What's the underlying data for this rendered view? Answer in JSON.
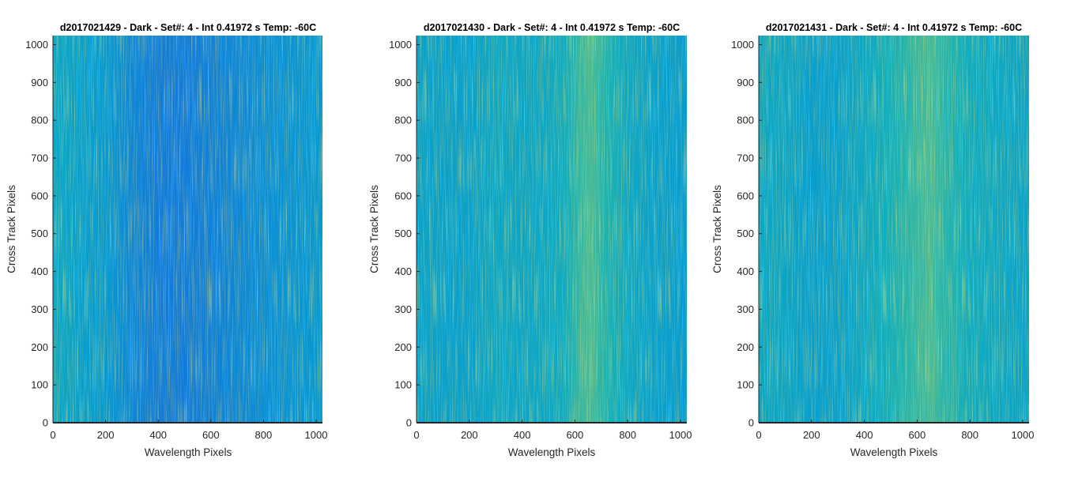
{
  "chart_data": [
    {
      "type": "heatmap",
      "title": "d2017021429 - Dark - Set#: 4 - Int 0.41972 s Temp: -60C",
      "xlabel": "Wavelength Pixels",
      "ylabel": "Cross Track Pixels",
      "xlim": [
        0,
        1024
      ],
      "ylim": [
        0,
        1024
      ],
      "xticks": [
        0,
        200,
        400,
        600,
        800,
        1000
      ],
      "yticks": [
        0,
        100,
        200,
        300,
        400,
        500,
        600,
        700,
        800,
        900,
        1000
      ],
      "colormap": "parula",
      "column_profile": {
        "x": [
          0,
          100,
          200,
          300,
          400,
          500,
          600,
          700,
          800,
          900,
          1024
        ],
        "level": [
          0.5,
          0.47,
          0.44,
          0.38,
          0.34,
          0.34,
          0.36,
          0.38,
          0.4,
          0.42,
          0.44
        ]
      }
    },
    {
      "type": "heatmap",
      "title": "d2017021430 - Dark - Set#: 4 - Int 0.41972 s Temp: -60C",
      "xlabel": "Wavelength Pixels",
      "ylabel": "Cross Track Pixels",
      "xlim": [
        0,
        1024
      ],
      "ylim": [
        0,
        1024
      ],
      "xticks": [
        0,
        200,
        400,
        600,
        800,
        1000
      ],
      "yticks": [
        0,
        100,
        200,
        300,
        400,
        500,
        600,
        700,
        800,
        900,
        1000
      ],
      "colormap": "parula",
      "column_profile": {
        "x": [
          0,
          100,
          200,
          300,
          400,
          500,
          560,
          620,
          660,
          720,
          800,
          900,
          1024
        ],
        "level": [
          0.48,
          0.47,
          0.47,
          0.5,
          0.49,
          0.5,
          0.52,
          0.6,
          0.63,
          0.56,
          0.5,
          0.47,
          0.45
        ]
      }
    },
    {
      "type": "heatmap",
      "title": "d2017021431 - Dark - Set#: 4 - Int 0.41972 s Temp: -60C",
      "xlabel": "Wavelength Pixels",
      "ylabel": "Cross Track Pixels",
      "xlim": [
        0,
        1024
      ],
      "ylim": [
        0,
        1024
      ],
      "xticks": [
        0,
        200,
        400,
        600,
        800,
        1000
      ],
      "yticks": [
        0,
        100,
        200,
        300,
        400,
        500,
        600,
        700,
        800,
        900,
        1000
      ],
      "colormap": "parula",
      "column_profile": {
        "x": [
          0,
          100,
          200,
          300,
          400,
          500,
          600,
          650,
          700,
          800,
          900,
          1024
        ],
        "level": [
          0.5,
          0.49,
          0.46,
          0.47,
          0.5,
          0.54,
          0.6,
          0.63,
          0.58,
          0.52,
          0.5,
          0.48
        ]
      }
    }
  ]
}
